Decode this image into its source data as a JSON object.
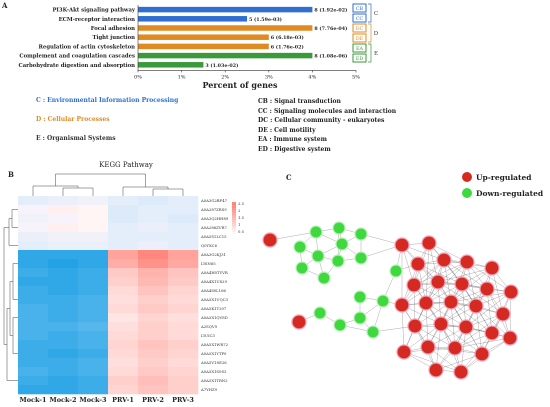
{
  "panels": {
    "a": "A",
    "b": "B",
    "c": "C"
  },
  "chart_data": [
    {
      "type": "bar",
      "orientation": "horizontal",
      "categories": [
        "PI3K-Akt signaling pathway",
        "ECM-receptor interaction",
        "Focal adhesion",
        "Tight junction",
        "Regulation of actin cytoskeleton",
        "Complement and coagulation cascades",
        "Carbohydrate digestion and absorption"
      ],
      "values": [
        4,
        2.5,
        4,
        3,
        3,
        4,
        1.5
      ],
      "bar_labels": [
        "8 (1.92e-02)",
        "5 (1.59e-03)",
        "8 (7.76e-04)",
        "6 (6.18e-03)",
        "6 (1.76e-02)",
        "8 (1.08e-06)",
        "3 (1.03e-02)"
      ],
      "bar_colors": [
        "#2e6fcf",
        "#2e6fcf",
        "#e08a22",
        "#e08a22",
        "#e08a22",
        "#3a9a3a",
        "#3a9a3a"
      ],
      "x_ticks": [
        "0%",
        "1%",
        "2%",
        "3%",
        "4%",
        "5%"
      ],
      "xlim": [
        0,
        5
      ],
      "xlabel": "Percent of genes",
      "side_legend": [
        {
          "code": "CB",
          "color": "#2e6fcf"
        },
        {
          "code": "CC",
          "color": "#2e6fcf"
        },
        {
          "code": "DC",
          "color": "#e08a22"
        },
        {
          "code": "DE",
          "color": "#e08a22"
        },
        {
          "code": "EA",
          "color": "#3a9a3a"
        },
        {
          "code": "ED",
          "color": "#3a9a3a"
        }
      ],
      "group_letters": [
        "C",
        "D",
        "E"
      ],
      "category_legend_left": [
        {
          "text": "C : Environmental Information Processing",
          "color": "#2e6fcf"
        },
        {
          "text": "D : Cellular Processes",
          "color": "#e08a22"
        },
        {
          "text": "E : Organismal Systems",
          "color": "#333333"
        }
      ],
      "category_legend_right": [
        "CB : Signal transduction",
        "CC : Signaling molecules and interaction",
        "DC : Cellular community - eukaryotes",
        "DE : Cell motility",
        "EA : Immune system",
        "ED : Digestive system"
      ]
    },
    {
      "type": "heatmap",
      "title": "KEGG  Pathway",
      "columns": [
        "Mock-1",
        "Mock-2",
        "Mock-3",
        "PRV-1",
        "PRV-2",
        "PRV-3"
      ],
      "rows": [
        "A0A3G2BF47",
        "A0A287ZRS9",
        "A0A3Q2HH89",
        "A0A286ZVR7",
        "A0A5S1LC15",
        "Q0YXC6",
        "A0A3G2KJ31",
        "I3SN65",
        "A0A4H0TYVR",
        "A0A4X1U829",
        "A0A480L166",
        "A0A5X1UQC3",
        "A0A5K1T207",
        "A0A5X1QV8D",
        "A2SQV9",
        "I3UIC3",
        "A0A5X1WR72",
        "A0A5X1YTP0",
        "A0A5V1SE26",
        "A0A5X1S0S3",
        "A0A5X1TRN2",
        "A7YHZ9"
      ],
      "values": [
        [
          0.1,
          0.2,
          0.3,
          0.1,
          0.0,
          0.1
        ],
        [
          0.4,
          0.6,
          0.5,
          0.0,
          0.1,
          0.1
        ],
        [
          0.3,
          0.4,
          0.5,
          0.0,
          0.1,
          0.0
        ],
        [
          0.4,
          0.6,
          0.5,
          0.1,
          0.2,
          0.1
        ],
        [
          0.2,
          0.3,
          0.3,
          0.1,
          0.1,
          0.1
        ],
        [
          0.1,
          0.2,
          0.2,
          0.1,
          0.2,
          0.1
        ],
        [
          -1.5,
          -1.5,
          -1.5,
          2.0,
          2.5,
          2.0
        ],
        [
          -1.5,
          -1.6,
          -1.5,
          1.8,
          2.3,
          1.9
        ],
        [
          -1.4,
          -1.5,
          -1.4,
          1.3,
          1.7,
          1.4
        ],
        [
          -1.5,
          -1.5,
          -1.4,
          1.2,
          1.6,
          1.3
        ],
        [
          -1.4,
          -1.5,
          -1.4,
          1.0,
          1.4,
          1.1
        ],
        [
          -1.4,
          -1.4,
          -1.3,
          0.9,
          1.2,
          1.0
        ],
        [
          -1.3,
          -1.4,
          -1.3,
          1.0,
          1.3,
          1.1
        ],
        [
          -1.3,
          -1.4,
          -1.3,
          0.8,
          1.1,
          0.9
        ],
        [
          -1.3,
          -1.3,
          -1.2,
          0.9,
          1.2,
          1.0
        ],
        [
          -1.3,
          -1.4,
          -1.3,
          1.0,
          1.2,
          1.0
        ],
        [
          -1.4,
          -1.4,
          -1.3,
          1.1,
          1.4,
          1.2
        ],
        [
          -1.4,
          -1.5,
          -1.4,
          1.0,
          1.3,
          1.1
        ],
        [
          -1.4,
          -1.4,
          -1.3,
          0.9,
          1.2,
          1.0
        ],
        [
          -1.3,
          -1.4,
          -1.3,
          1.0,
          1.3,
          1.1
        ],
        [
          -1.4,
          -1.5,
          -1.4,
          1.2,
          1.5,
          1.2
        ],
        [
          -1.5,
          -1.5,
          -1.4,
          1.1,
          1.4,
          1.2
        ]
      ],
      "color_scale_ticks": [
        "2.5",
        "2",
        "1.5",
        "1",
        "0.5"
      ]
    },
    {
      "type": "network",
      "legend": [
        {
          "label": "Up-regulated",
          "color": "#d42a22"
        },
        {
          "label": "Down-regulated",
          "color": "#3fd93f"
        }
      ]
    }
  ]
}
